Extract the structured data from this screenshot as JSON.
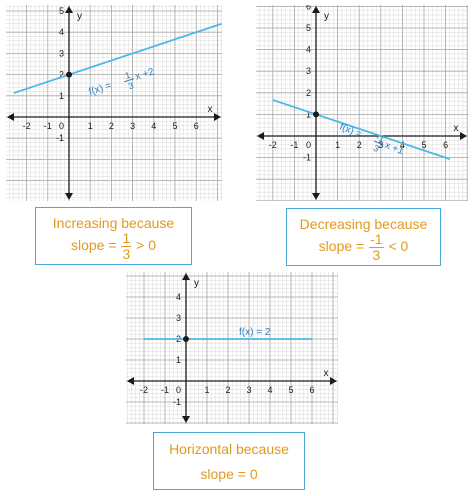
{
  "colors": {
    "line": "#4bb8e8",
    "label": "#2a7fc0",
    "caption_text": "#e09a1e",
    "caption_border": "#4aa8d8"
  },
  "chart_data": [
    {
      "type": "line",
      "xlabel": "x",
      "ylabel": "y",
      "xlim": [
        -2.6,
        7.2
      ],
      "ylim": [
        -1.8,
        6.8
      ],
      "x_ticks": [
        "-2",
        "-1",
        "1",
        "2",
        "3",
        "4",
        "5",
        "6"
      ],
      "y_ticks": [
        "-1",
        "1",
        "2",
        "3",
        "4",
        "5",
        "6"
      ],
      "origin_label": "0",
      "grid": true,
      "series": [
        {
          "x": [
            -2.6,
            7.2
          ],
          "y": [
            1.13,
            4.4
          ]
        }
      ],
      "points": [
        {
          "x": 0,
          "y": 2
        }
      ],
      "annotation": {
        "prefix": "f(x) = ",
        "num": "1",
        "den": "3",
        "suffix": "x +2"
      },
      "caption": {
        "line1": "Increasing because",
        "prefix": "slope = ",
        "num": "1",
        "den": "3",
        "suffix": " > 0"
      }
    },
    {
      "type": "line",
      "xlabel": "x",
      "ylabel": "y",
      "xlim": [
        -2.7,
        7.1
      ],
      "ylim": [
        -1.8,
        6.9
      ],
      "x_ticks": [
        "-2",
        "-1",
        "1",
        "2",
        "3",
        "4",
        "5",
        "6"
      ],
      "y_ticks": [
        "-1",
        "1",
        "2",
        "3",
        "4",
        "5",
        "6"
      ],
      "origin_label": "0",
      "grid": true,
      "series": [
        {
          "x": [
            -2,
            6.2
          ],
          "y": [
            1.67,
            -1.07
          ]
        }
      ],
      "points": [
        {
          "x": 0,
          "y": 1
        }
      ],
      "annotation": {
        "prefix": "f(x) = ",
        "num": "-1",
        "den": "3",
        "suffix": "x +1"
      },
      "caption": {
        "line1": "Decreasing because",
        "prefix": "slope = ",
        "num": "-1",
        "den": "3",
        "suffix": " < 0"
      }
    },
    {
      "type": "line",
      "xlabel": "x",
      "ylabel": "y",
      "xlim": [
        -2.7,
        7.0
      ],
      "ylim": [
        -1.8,
        4.8
      ],
      "x_ticks": [
        "-2",
        "-1",
        "1",
        "2",
        "3",
        "4",
        "5",
        "6"
      ],
      "y_ticks": [
        "-1",
        "1",
        "2",
        "3",
        "4"
      ],
      "origin_label": "0",
      "grid": true,
      "series": [
        {
          "x": [
            -2,
            6
          ],
          "y": [
            2,
            2
          ]
        }
      ],
      "points": [
        {
          "x": 0,
          "y": 2
        }
      ],
      "annotation": {
        "prefix": "f(x) = 2",
        "num": "",
        "den": "",
        "suffix": ""
      },
      "caption": {
        "line1": "Horizontal because",
        "prefix": "slope =  0",
        "num": "",
        "den": "",
        "suffix": ""
      }
    }
  ]
}
